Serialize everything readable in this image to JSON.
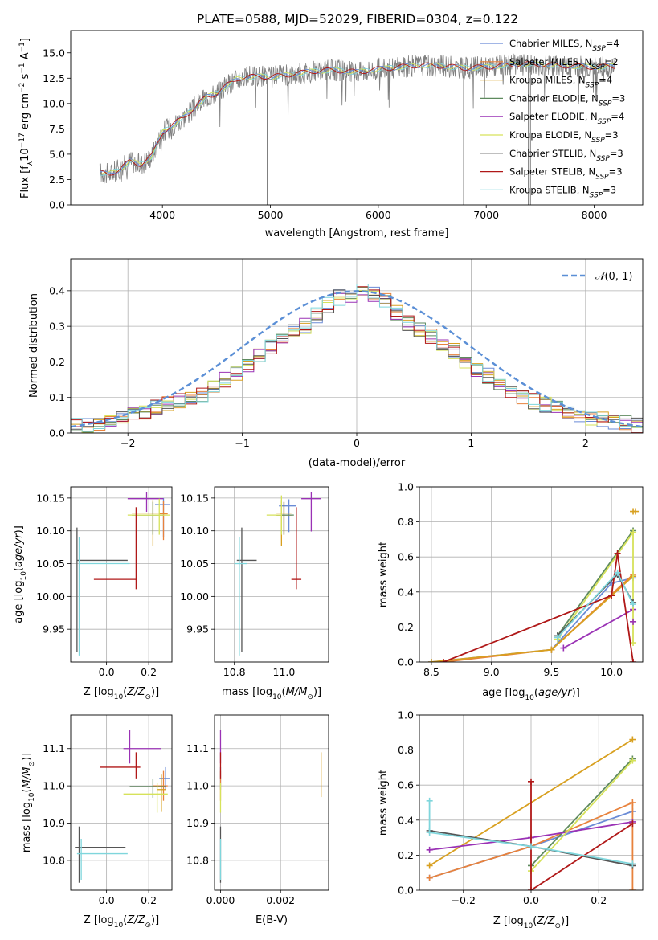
{
  "figure_title": "PLATE=0588, MJD=52029, FIBERID=0304, z=0.122",
  "colors": {
    "Chabrier MILES": "#6a8bd6",
    "Salpeter MILES": "#e8823c",
    "Kroupa MILES": "#d8a020",
    "Chabrier ELODIE": "#5e8a5e",
    "Salpeter ELODIE": "#9a32b5",
    "Kroupa ELODIE": "#d6e25a",
    "Chabrier STELIB": "#555555",
    "Salpeter STELIB": "#b01818",
    "Kroupa STELIB": "#7fd6dc",
    "data": "#808080",
    "normal": "#5b8fd6"
  },
  "chart_data": [
    {
      "id": "spectrum",
      "type": "line",
      "title": "PLATE=0588, MJD=52029, FIBERID=0304, z=0.122",
      "xlabel": "wavelength [Angstrom, rest frame]",
      "ylabel": "Flux [f_λ 10^-17 erg cm^-2 s^-1 A^-1]",
      "xlim": [
        3150,
        8450
      ],
      "ylim": [
        0,
        17.2
      ],
      "xticks": [
        4000,
        5000,
        6000,
        7000,
        8000
      ],
      "yticks": [
        0.0,
        2.5,
        5.0,
        7.5,
        10.0,
        12.5,
        15.0
      ],
      "legend_position": "top-right",
      "legend": [
        "Chabrier MILES, N_SSP=4",
        "Salpeter MILES, N_SSP=2",
        "Kroupa MILES, N_SSP=4",
        "Chabrier ELODIE, N_SSP=3",
        "Salpeter ELODIE, N_SSP=4",
        "Kroupa ELODIE, N_SSP=3",
        "Chabrier STELIB, N_SSP=3",
        "Salpeter STELIB, N_SSP=3",
        "Kroupa STELIB, N_SSP=3"
      ],
      "continuum": {
        "x": [
          3420,
          3500,
          3600,
          3700,
          3800,
          3900,
          4000,
          4100,
          4200,
          4300,
          4400,
          4500,
          4600,
          4700,
          4800,
          4900,
          5000,
          5200,
          5400,
          5600,
          5800,
          6000,
          6200,
          6400,
          6600,
          6800,
          7000,
          7200,
          7400,
          7600,
          7800,
          8000,
          8200
        ],
        "y": [
          3.2,
          3.0,
          3.5,
          4.3,
          4.0,
          4.8,
          7.2,
          7.9,
          8.7,
          9.6,
          10.6,
          11.0,
          11.8,
          12.5,
          12.6,
          12.7,
          12.6,
          12.9,
          13.2,
          13.3,
          13.1,
          13.4,
          13.6,
          13.8,
          13.7,
          13.5,
          13.6,
          13.8,
          13.9,
          13.8,
          13.7,
          13.6,
          13.7
        ]
      },
      "data_glitches": [
        {
          "x": 4970,
          "y": 0.0
        },
        {
          "x": 6790,
          "y": 0.0
        },
        {
          "x": 7390,
          "y": 0.0
        },
        {
          "x": 7410,
          "y": 0.0
        }
      ]
    },
    {
      "id": "residuals",
      "type": "histogram",
      "xlabel": "(data-model)/error",
      "ylabel": "Normed distribution",
      "xlim": [
        -2.5,
        2.5
      ],
      "ylim": [
        0,
        0.49
      ],
      "xticks": [
        -2,
        -1,
        0,
        1,
        2
      ],
      "yticks": [
        0.0,
        0.1,
        0.2,
        0.3,
        0.4
      ],
      "legend": [
        "𝒩(0, 1)"
      ],
      "legend_position": "top-right",
      "bin_width": 0.1,
      "bin_start": -2.5,
      "base_heights": [
        0.02,
        0.02,
        0.03,
        0.04,
        0.04,
        0.05,
        0.06,
        0.07,
        0.08,
        0.09,
        0.1,
        0.11,
        0.13,
        0.15,
        0.17,
        0.19,
        0.22,
        0.24,
        0.27,
        0.29,
        0.3,
        0.33,
        0.36,
        0.38,
        0.39,
        0.4,
        0.39,
        0.37,
        0.34,
        0.31,
        0.29,
        0.27,
        0.25,
        0.23,
        0.2,
        0.18,
        0.16,
        0.14,
        0.12,
        0.1,
        0.09,
        0.08,
        0.07,
        0.06,
        0.05,
        0.04,
        0.04,
        0.03,
        0.03,
        0.02
      ]
    },
    {
      "id": "age_vs_Z",
      "type": "errorbar",
      "xlabel": "Z [log10(Z/Z⊙)]",
      "ylabel": "age  [log10(age/yr)]",
      "xlim": [
        -0.17,
        0.31
      ],
      "ylim": [
        9.9,
        10.167
      ],
      "xticks": [
        0.0,
        0.2
      ],
      "yticks": [
        9.95,
        10.0,
        10.05,
        10.1,
        10.15
      ],
      "points": [
        {
          "model": "Chabrier MILES",
          "x": 0.27,
          "xerr": [
            0.04,
            0.03
          ],
          "y": 10.14,
          "yerr": [
            0.05,
            0.01
          ]
        },
        {
          "model": "Salpeter MILES",
          "x": 0.27,
          "xerr": [
            0.02,
            0.02
          ],
          "y": 10.126,
          "yerr": [
            0.04,
            0.02
          ]
        },
        {
          "model": "Kroupa MILES",
          "x": 0.22,
          "xerr": [
            0.1,
            0.06
          ],
          "y": 10.127,
          "yerr": [
            0.05,
            0.02
          ]
        },
        {
          "model": "Chabrier ELODIE",
          "x": 0.22,
          "xerr": [
            0.1,
            0.05
          ],
          "y": 10.124,
          "yerr": [
            0.03,
            0.02
          ]
        },
        {
          "model": "Salpeter ELODIE",
          "x": 0.19,
          "xerr": [
            0.09,
            0.08
          ],
          "y": 10.149,
          "yerr": [
            0.02,
            0.01
          ]
        },
        {
          "model": "Kroupa ELODIE",
          "x": 0.25,
          "xerr": [
            0.15,
            0.05
          ],
          "y": 10.124,
          "yerr": [
            0.03,
            0.025
          ]
        },
        {
          "model": "Chabrier STELIB",
          "x": -0.14,
          "xerr": [
            0.0,
            0.24
          ],
          "y": 10.055,
          "yerr": [
            0.14,
            0.05
          ]
        },
        {
          "model": "Salpeter STELIB",
          "x": 0.14,
          "xerr": [
            0.2,
            0.0
          ],
          "y": 10.026,
          "yerr": [
            0.015,
            0.11
          ]
        },
        {
          "model": "Kroupa STELIB",
          "x": -0.13,
          "xerr": [
            0.0,
            0.24
          ],
          "y": 10.05,
          "yerr": [
            0.14,
            0.04
          ]
        }
      ]
    },
    {
      "id": "age_vs_mass",
      "type": "errorbar",
      "xlabel": "mass [log10(M/M⊙)]",
      "xlim": [
        10.72,
        11.18
      ],
      "ylim": [
        9.9,
        10.167
      ],
      "xticks": [
        10.8,
        11.0
      ],
      "yticks": [
        9.95,
        10.0,
        10.05,
        10.1,
        10.15
      ],
      "points": [
        {
          "model": "Chabrier MILES",
          "x": 11.02,
          "xerr": [
            0.04,
            0.03
          ],
          "y": 10.138,
          "yerr": [
            0.04,
            0.01
          ]
        },
        {
          "model": "Salpeter MILES",
          "x": 11.0,
          "xerr": [
            0.03,
            0.03
          ],
          "y": 10.124,
          "yerr": [
            0.03,
            0.02
          ]
        },
        {
          "model": "Kroupa MILES",
          "x": 10.99,
          "xerr": [
            0.02,
            0.04
          ],
          "y": 10.127,
          "yerr": [
            0.05,
            0.02
          ]
        },
        {
          "model": "Chabrier ELODIE",
          "x": 11.0,
          "xerr": [
            0.03,
            0.04
          ],
          "y": 10.124,
          "yerr": [
            0.03,
            0.02
          ]
        },
        {
          "model": "Salpeter ELODIE",
          "x": 11.11,
          "xerr": [
            0.04,
            0.04
          ],
          "y": 10.149,
          "yerr": [
            0.05,
            0.01
          ]
        },
        {
          "model": "Kroupa ELODIE",
          "x": 10.99,
          "xerr": [
            0.06,
            0.0
          ],
          "y": 10.124,
          "yerr": [
            0.03,
            0.03
          ]
        },
        {
          "model": "Chabrier STELIB",
          "x": 10.83,
          "xerr": [
            0.02,
            0.06
          ],
          "y": 10.055,
          "yerr": [
            0.14,
            0.05
          ]
        },
        {
          "model": "Salpeter STELIB",
          "x": 11.05,
          "xerr": [
            0.02,
            0.02
          ],
          "y": 10.026,
          "yerr": [
            0.015,
            0.11
          ]
        },
        {
          "model": "Kroupa STELIB",
          "x": 10.82,
          "xerr": [
            0.02,
            0.03
          ],
          "y": 10.05,
          "yerr": [
            0.14,
            0.04
          ]
        }
      ]
    },
    {
      "id": "massweight_vs_age",
      "type": "line",
      "xlabel": "age  [log10(age/yr)]",
      "ylabel": "mass weight",
      "xlim": [
        8.4,
        10.26
      ],
      "ylim": [
        0,
        1.0
      ],
      "xticks": [
        8.5,
        9.0,
        9.5,
        10.0
      ],
      "yticks": [
        0.0,
        0.2,
        0.4,
        0.6,
        0.8,
        1.0
      ],
      "series": [
        {
          "model": "Chabrier MILES",
          "x": [
            8.5,
            9.5,
            10.0,
            10.18
          ],
          "y": [
            0.0,
            0.07,
            0.45,
            0.48
          ]
        },
        {
          "model": "Salpeter MILES",
          "x": [
            8.6,
            9.5,
            10.18
          ],
          "y": [
            0.0,
            0.07,
            0.5
          ]
        },
        {
          "model": "Kroupa MILES",
          "x": [
            8.5,
            9.5,
            10.18
          ],
          "y": [
            0.0,
            0.07,
            0.49
          ]
        },
        {
          "model": "Chabrier ELODIE",
          "x": [
            9.55,
            10.18
          ],
          "y": [
            0.15,
            0.75
          ]
        },
        {
          "model": "Salpeter ELODIE",
          "x": [
            9.6,
            10.18
          ],
          "y": [
            0.08,
            0.3
          ]
        },
        {
          "model": "Kroupa ELODIE",
          "x": [
            9.55,
            10.18,
            10.18
          ],
          "y": [
            0.13,
            0.74,
            0.11
          ]
        },
        {
          "model": "Chabrier STELIB",
          "x": [
            9.55,
            10.05,
            10.18
          ],
          "y": [
            0.15,
            0.5,
            0.34
          ]
        },
        {
          "model": "Salpeter STELIB",
          "x": [
            8.6,
            10.0,
            10.05,
            10.18
          ],
          "y": [
            0.0,
            0.38,
            0.62,
            0.0
          ]
        },
        {
          "model": "Kroupa STELIB",
          "x": [
            9.55,
            10.05,
            10.18
          ],
          "y": [
            0.14,
            0.51,
            0.33
          ]
        },
        {
          "model": "Salpeter ELODIE extra",
          "x": [
            10.18
          ],
          "y": [
            0.23
          ]
        },
        {
          "model": "Kroupa MILES extra",
          "x": [
            10.18,
            10.2
          ],
          "y": [
            0.86,
            0.86
          ]
        }
      ]
    },
    {
      "id": "mass_vs_Z",
      "type": "errorbar",
      "xlabel": "Z [log10(Z/Z⊙)]",
      "ylabel": "mass [log10(M/M⊙)]",
      "xlim": [
        -0.17,
        0.31
      ],
      "ylim": [
        10.72,
        11.19
      ],
      "xticks": [
        0.0,
        0.2
      ],
      "yticks": [
        10.8,
        10.9,
        11.0,
        11.1
      ],
      "points": [
        {
          "model": "Chabrier MILES",
          "x": 0.28,
          "xerr": [
            0.03,
            0.02
          ],
          "y": 11.02,
          "yerr": [
            0.03,
            0.03
          ]
        },
        {
          "model": "Salpeter MILES",
          "x": 0.27,
          "xerr": [
            0.05,
            0.02
          ],
          "y": 11.0,
          "yerr": [
            0.04,
            0.04
          ]
        },
        {
          "model": "Kroupa MILES",
          "x": 0.26,
          "xerr": [
            0.02,
            0.02
          ],
          "y": 10.99,
          "yerr": [
            0.06,
            0.04
          ]
        },
        {
          "model": "Chabrier ELODIE",
          "x": 0.22,
          "xerr": [
            0.11,
            0.06
          ],
          "y": 10.998,
          "yerr": [
            0.03,
            0.02
          ]
        },
        {
          "model": "Salpeter ELODIE",
          "x": 0.11,
          "xerr": [
            0.03,
            0.15
          ],
          "y": 11.1,
          "yerr": [
            0.04,
            0.05
          ]
        },
        {
          "model": "Kroupa ELODIE",
          "x": 0.24,
          "xerr": [
            0.16,
            0.05
          ],
          "y": 10.978,
          "yerr": [
            0.05,
            0.03
          ]
        },
        {
          "model": "Chabrier STELIB",
          "x": -0.13,
          "xerr": [
            0.02,
            0.22
          ],
          "y": 10.835,
          "yerr": [
            0.095,
            0.056
          ]
        },
        {
          "model": "Salpeter STELIB",
          "x": 0.14,
          "xerr": [
            0.17,
            0.02
          ],
          "y": 11.05,
          "yerr": [
            0.03,
            0.04
          ]
        },
        {
          "model": "Kroupa STELIB",
          "x": -0.12,
          "xerr": [
            0.02,
            0.22
          ],
          "y": 10.818,
          "yerr": [
            0.07,
            0.04
          ]
        }
      ]
    },
    {
      "id": "mass_vs_ebv",
      "type": "errorbar",
      "xlabel": "E(B-V)",
      "xlim": [
        -0.0002,
        0.0036
      ],
      "ylim": [
        10.72,
        11.19
      ],
      "xticks": [
        0.0,
        0.002
      ],
      "yticks": [
        10.8,
        10.9,
        11.0,
        11.1
      ],
      "points": [
        {
          "model": "Chabrier MILES",
          "x": 0.0,
          "y": 11.02,
          "yerr": [
            0.03,
            0.03
          ]
        },
        {
          "model": "Salpeter MILES",
          "x": 0.0,
          "y": 11.0,
          "yerr": [
            0.04,
            0.04
          ]
        },
        {
          "model": "Kroupa MILES",
          "x": 0.00335,
          "y": 11.03,
          "yerr": [
            0.06,
            0.06
          ]
        },
        {
          "model": "Salpeter ELODIE",
          "x": 0.0,
          "y": 11.1,
          "yerr": [
            0.04,
            0.05
          ]
        },
        {
          "model": "Kroupa ELODIE",
          "x": 0.0,
          "y": 10.978,
          "yerr": [
            0.05,
            0.03
          ]
        },
        {
          "model": "Chabrier STELIB",
          "x": 0.0,
          "y": 10.835,
          "yerr": [
            0.095,
            0.056
          ]
        },
        {
          "model": "Salpeter STELIB",
          "x": 0.0,
          "y": 11.05,
          "yerr": [
            0.03,
            0.04
          ]
        },
        {
          "model": "Kroupa STELIB",
          "x": 0.0,
          "y": 10.818,
          "yerr": [
            0.07,
            0.04
          ]
        }
      ]
    },
    {
      "id": "massweight_vs_Z",
      "type": "line",
      "xlabel": "Z [log10(Z/Z⊙)]",
      "ylabel": "mass weight",
      "xlim": [
        -0.33,
        0.33
      ],
      "ylim": [
        0,
        1.0
      ],
      "xticks": [
        -0.2,
        0.0,
        0.2
      ],
      "yticks": [
        0.0,
        0.2,
        0.4,
        0.6,
        0.8,
        1.0
      ],
      "series": [
        {
          "model": "Chabrier MILES",
          "x": [
            -0.3,
            0.0,
            0.3
          ],
          "y": [
            0.07,
            0.25,
            0.45
          ]
        },
        {
          "model": "Salpeter MILES",
          "x": [
            -0.3,
            0.0,
            0.3,
            0.3
          ],
          "y": [
            0.07,
            0.25,
            0.5,
            0.0
          ]
        },
        {
          "model": "Kroupa MILES",
          "x": [
            -0.3,
            0.3
          ],
          "y": [
            0.14,
            0.86
          ]
        },
        {
          "model": "Chabrier ELODIE",
          "x": [
            0.0,
            0.3
          ],
          "y": [
            0.14,
            0.75
          ]
        },
        {
          "model": "Salpeter ELODIE",
          "x": [
            -0.3,
            0.0,
            0.3
          ],
          "y": [
            0.23,
            0.3,
            0.39
          ]
        },
        {
          "model": "Kroupa ELODIE",
          "x": [
            0.0,
            0.3
          ],
          "y": [
            0.11,
            0.74
          ]
        },
        {
          "model": "Chabrier STELIB",
          "x": [
            -0.3,
            0.0,
            0.3
          ],
          "y": [
            0.34,
            0.25,
            0.14
          ]
        },
        {
          "model": "Salpeter STELIB",
          "x": [
            0.0,
            0.0,
            0.3
          ],
          "y": [
            0.62,
            0.0,
            0.38
          ]
        },
        {
          "model": "Kroupa STELIB",
          "x": [
            -0.3,
            -0.3,
            0.0,
            0.3
          ],
          "y": [
            0.51,
            0.33,
            0.25,
            0.15
          ]
        }
      ]
    }
  ]
}
